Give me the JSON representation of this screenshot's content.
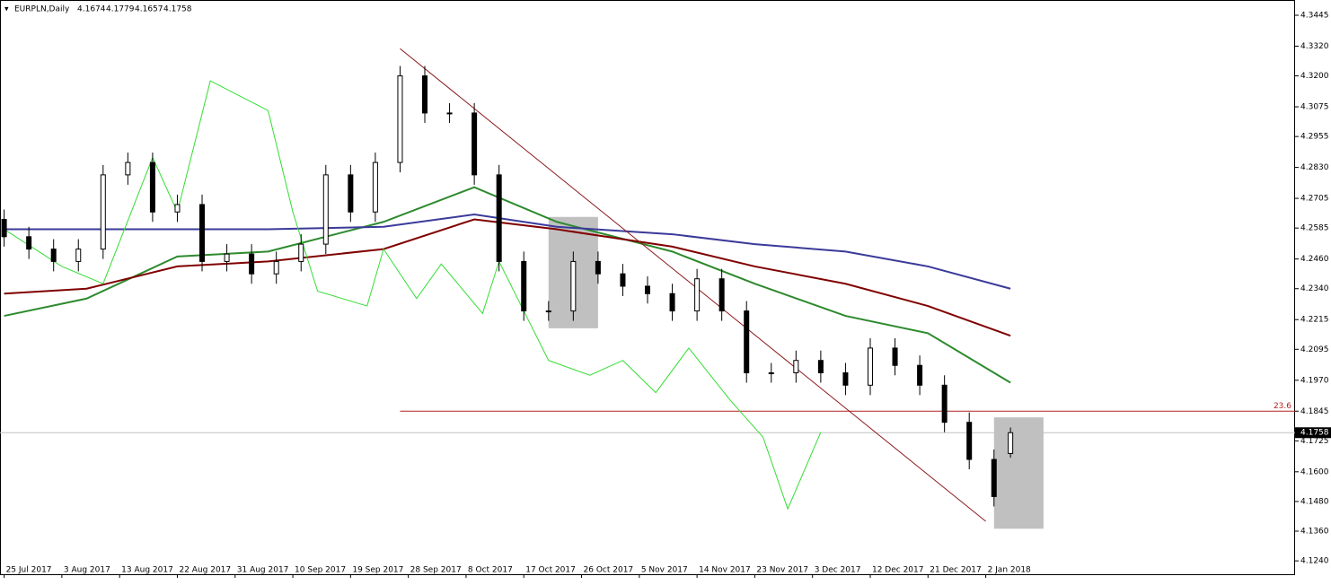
{
  "chart_data": {
    "type": "candlestick",
    "title": "EURPLN,Daily",
    "ohlc": [
      4.1674,
      4.1779,
      4.1657,
      4.1758
    ],
    "xlim": [
      -0.5,
      156.5
    ],
    "ylim": [
      4.1186,
      4.3503
    ],
    "xticks": [
      {
        "value": 0,
        "label": "25 Jul 2017"
      },
      {
        "value": 7,
        "label": "3 Aug 2017"
      },
      {
        "value": 14,
        "label": "13 Aug 2017"
      },
      {
        "value": 21,
        "label": "22 Aug 2017"
      },
      {
        "value": 28,
        "label": "31 Aug 2017"
      },
      {
        "value": 35,
        "label": "10 Sep 2017"
      },
      {
        "value": 42,
        "label": "19 Sep 2017"
      },
      {
        "value": 49,
        "label": "28 Sep 2017"
      },
      {
        "value": 56,
        "label": "8 Oct 2017"
      },
      {
        "value": 63,
        "label": "17 Oct 2017"
      },
      {
        "value": 70,
        "label": "26 Oct 2017"
      },
      {
        "value": 77,
        "label": "5 Nov 2017"
      },
      {
        "value": 84,
        "label": "14 Nov 2017"
      },
      {
        "value": 91,
        "label": "23 Nov 2017"
      },
      {
        "value": 98,
        "label": "3 Dec 2017"
      },
      {
        "value": 105,
        "label": "12 Dec 2017"
      },
      {
        "value": 112,
        "label": "21 Dec 2017"
      },
      {
        "value": 119,
        "label": "2 Jan 2018"
      }
    ],
    "yticks": [
      4.3445,
      {
        "value": 4.332,
        "label": "4.3320"
      },
      {
        "value": 4.32,
        "label": "4.3200"
      },
      4.3075,
      4.2955,
      {
        "value": 4.283,
        "label": "4.2830"
      },
      4.2705,
      4.2585,
      {
        "value": 4.246,
        "label": "4.2460"
      },
      {
        "value": 4.234,
        "label": "4.2340"
      },
      4.2215,
      4.2095,
      {
        "value": 4.197,
        "label": "4.1970"
      },
      4.1845,
      4.1725,
      {
        "value": 4.16,
        "label": "4.1600"
      },
      {
        "value": 4.148,
        "label": "4.1480"
      },
      {
        "value": 4.136,
        "label": "4.1360"
      },
      {
        "value": 4.124,
        "label": "4.1240"
      }
    ],
    "candles": {
      "x": [
        0,
        3,
        6,
        9,
        12,
        15,
        18,
        21,
        24,
        27,
        30,
        33,
        36,
        39,
        42,
        45,
        48,
        51,
        54,
        57,
        60,
        63,
        66,
        69,
        72,
        75,
        78,
        81,
        84,
        87,
        90,
        93,
        96,
        99,
        102,
        105,
        108,
        111,
        114,
        117,
        120,
        122
      ],
      "open": [
        4.262,
        4.255,
        4.25,
        4.245,
        4.25,
        4.28,
        4.285,
        4.265,
        4.268,
        4.245,
        4.248,
        4.24,
        4.245,
        4.252,
        4.28,
        4.265,
        4.285,
        4.32,
        4.305,
        4.305,
        4.28,
        4.245,
        4.225,
        4.225,
        4.245,
        4.24,
        4.235,
        4.232,
        4.225,
        4.238,
        4.225,
        4.2,
        4.2,
        4.205,
        4.2,
        4.195,
        4.21,
        4.203,
        4.195,
        4.18,
        4.165,
        4.1674
      ],
      "high": [
        4.266,
        4.259,
        4.254,
        4.254,
        4.284,
        4.289,
        4.289,
        4.272,
        4.272,
        4.252,
        4.252,
        4.249,
        4.256,
        4.284,
        4.284,
        4.289,
        4.324,
        4.324,
        4.309,
        4.309,
        4.284,
        4.249,
        4.229,
        4.249,
        4.249,
        4.244,
        4.239,
        4.236,
        4.242,
        4.242,
        4.229,
        4.204,
        4.209,
        4.209,
        4.204,
        4.214,
        4.214,
        4.207,
        4.199,
        4.184,
        4.169,
        4.1779
      ],
      "low": [
        4.251,
        4.246,
        4.241,
        4.241,
        4.246,
        4.276,
        4.261,
        4.261,
        4.241,
        4.241,
        4.236,
        4.236,
        4.241,
        4.248,
        4.261,
        4.261,
        4.281,
        4.301,
        4.301,
        4.276,
        4.241,
        4.221,
        4.221,
        4.221,
        4.236,
        4.231,
        4.228,
        4.221,
        4.221,
        4.221,
        4.196,
        4.196,
        4.196,
        4.196,
        4.191,
        4.191,
        4.199,
        4.191,
        4.176,
        4.161,
        4.146,
        4.1657
      ],
      "close": [
        4.255,
        4.25,
        4.245,
        4.25,
        4.28,
        4.285,
        4.265,
        4.268,
        4.245,
        4.248,
        4.24,
        4.245,
        4.252,
        4.28,
        4.265,
        4.285,
        4.32,
        4.305,
        4.305,
        4.28,
        4.245,
        4.225,
        4.225,
        4.245,
        4.24,
        4.235,
        4.232,
        4.225,
        4.238,
        4.225,
        4.2,
        4.2,
        4.205,
        4.2,
        4.195,
        4.21,
        4.203,
        4.195,
        4.18,
        4.165,
        4.15,
        4.1758
      ]
    },
    "lines": [
      {
        "color": "#2d8a2d",
        "width": 2,
        "x": [
          0,
          10,
          21,
          32,
          46,
          57,
          67,
          81,
          91,
          102,
          112,
          122
        ],
        "values": [
          4.223,
          4.23,
          4.247,
          4.249,
          4.261,
          4.275,
          4.261,
          4.249,
          4.236,
          4.223,
          4.216,
          4.196
        ]
      },
      {
        "color": "#800000",
        "width": 2,
        "x": [
          0,
          10,
          21,
          32,
          46,
          57,
          67,
          81,
          91,
          102,
          112,
          122
        ],
        "values": [
          4.232,
          4.234,
          4.243,
          4.245,
          4.25,
          4.262,
          4.258,
          4.251,
          4.243,
          4.236,
          4.227,
          4.215
        ]
      },
      {
        "color": "#3a3a9a",
        "width": 2,
        "x": [
          0,
          10,
          21,
          32,
          46,
          57,
          67,
          81,
          91,
          102,
          112,
          122
        ],
        "values": [
          4.258,
          4.258,
          4.258,
          4.258,
          4.259,
          4.264,
          4.259,
          4.256,
          4.252,
          4.249,
          4.243,
          4.234
        ]
      },
      {
        "color": "#33dd33",
        "width": 1,
        "x": [
          0,
          7,
          12,
          18,
          21,
          25,
          32,
          35,
          38,
          44,
          46,
          50,
          53,
          58,
          60,
          66,
          71,
          75,
          79,
          83,
          88,
          92,
          95,
          99
        ],
        "values": [
          4.258,
          4.243,
          4.236,
          4.287,
          4.265,
          4.318,
          4.306,
          4.265,
          4.233,
          4.227,
          4.25,
          4.23,
          4.244,
          4.224,
          4.245,
          4.205,
          4.199,
          4.205,
          4.192,
          4.21,
          4.189,
          4.174,
          4.145,
          4.176
        ]
      }
    ],
    "trendline": {
      "color": "#8b1a1a",
      "x": [
        48,
        119
      ],
      "values": [
        4.331,
        4.14
      ]
    },
    "zones": [
      {
        "x": [
          66,
          72
        ],
        "range": [
          4.218,
          4.263
        ]
      },
      {
        "x": [
          120,
          126
        ],
        "range": [
          4.137,
          4.182
        ]
      }
    ],
    "fibo": {
      "label": "23.6",
      "price": 4.1845,
      "x": 48,
      "color": "#b22222"
    },
    "last_price": 4.1758
  }
}
